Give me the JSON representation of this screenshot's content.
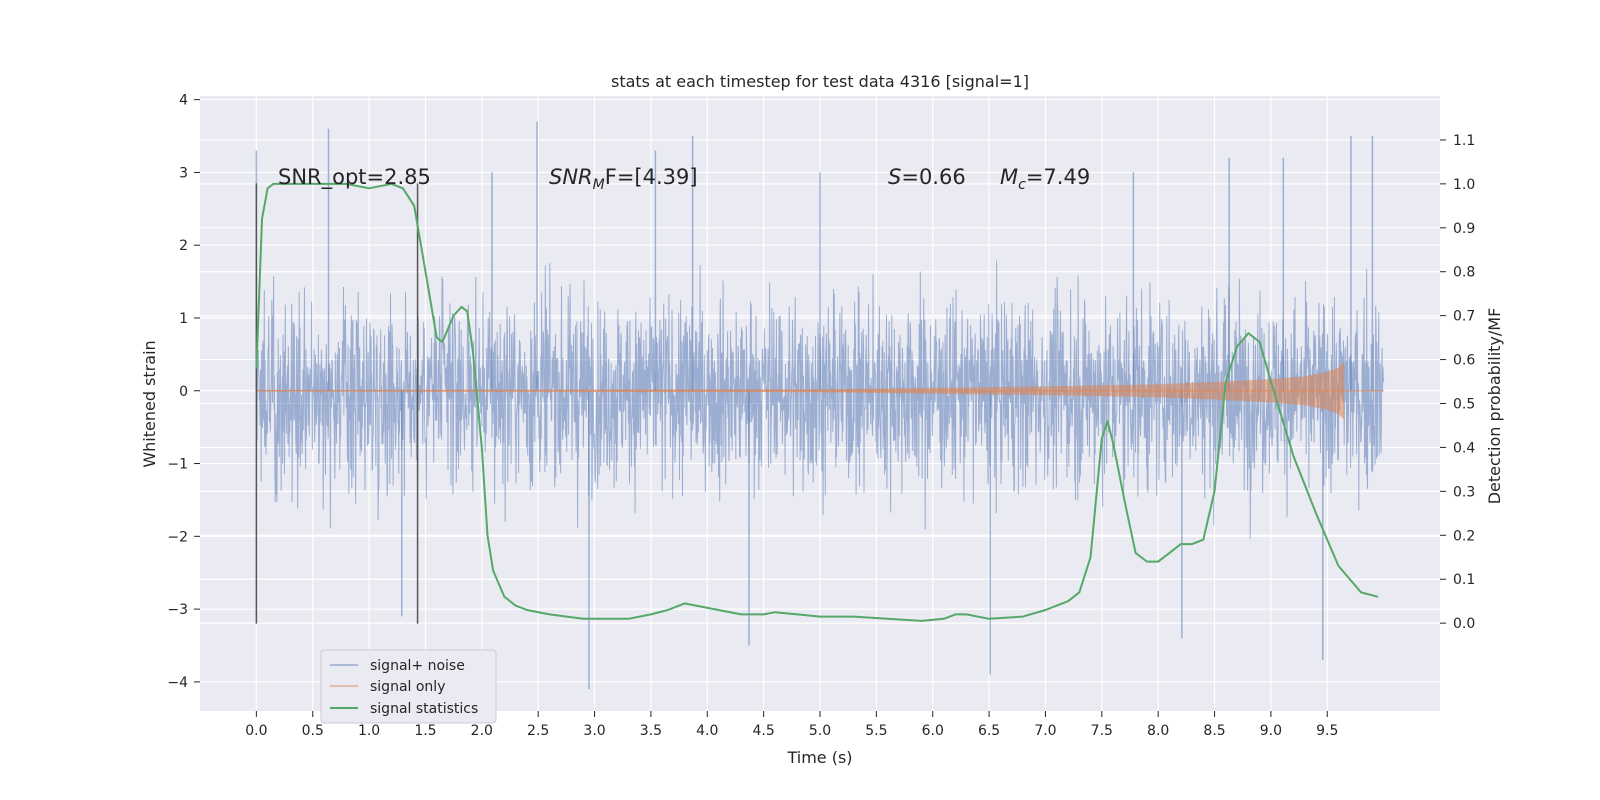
{
  "chart_data": {
    "type": "line",
    "title": "stats at each timestep for test data 4316 [signal=1]",
    "xlabel": "Time (s)",
    "ylabel": "Whitened strain",
    "y2label": "Detection probability/MF",
    "xlim": [
      -0.5,
      10.5
    ],
    "ylim": [
      -4.4,
      4.05
    ],
    "y2lim": [
      -0.2,
      1.2
    ],
    "x_ticks": [
      "0.0",
      "0.5",
      "1.0",
      "1.5",
      "2.0",
      "2.5",
      "3.0",
      "3.5",
      "4.0",
      "4.5",
      "5.0",
      "5.5",
      "6.0",
      "6.5",
      "7.0",
      "7.5",
      "8.0",
      "8.5",
      "9.0",
      "9.5"
    ],
    "y_ticks": [
      "4",
      "3",
      "2",
      "1",
      "0",
      "−1",
      "−2",
      "−3",
      "−4"
    ],
    "y2_ticks": [
      "1.1",
      "1.0",
      "0.9",
      "0.8",
      "0.7",
      "0.6",
      "0.5",
      "0.4",
      "0.3",
      "0.2",
      "0.1",
      "0.0"
    ],
    "grid": true,
    "legend_position": "lower-left",
    "annotations": {
      "snr_opt": "SNR_opt=2.85",
      "snr_mf_pre": "SNR",
      "snr_mf_sub": "M",
      "snr_mf_post": "F=[4.39]",
      "s_pre": "S",
      "s_post": "=0.66",
      "mc_pre": "M",
      "mc_sub": "c",
      "mc_post": "=7.49"
    },
    "vlines": [
      0.0,
      1.43
    ],
    "series": [
      {
        "name": "signal+ noise",
        "color": "#4c72b0",
        "description_range": [
          -2.5,
          2.5
        ],
        "peaks": {
          "x": [
            0.0,
            0.64,
            1.29,
            2.09,
            2.49,
            2.95,
            3.54,
            3.87,
            4.37,
            5.0,
            6.51,
            7.78,
            8.21,
            8.63,
            9.11,
            9.46,
            9.71,
            9.9
          ],
          "y": [
            3.3,
            3.6,
            -3.1,
            3.0,
            3.7,
            -4.1,
            3.3,
            3.5,
            -3.5,
            3.0,
            -3.9,
            3.0,
            -3.4,
            3.2,
            3.2,
            -3.7,
            3.5,
            3.5
          ]
        }
      },
      {
        "name": "signal only",
        "color": "#dd8452",
        "x": [
          0,
          5,
          6,
          7,
          8,
          8.5,
          9,
          9.3,
          9.5,
          9.6,
          9.65
        ],
        "amplitude": [
          0.01,
          0.02,
          0.04,
          0.06,
          0.09,
          0.12,
          0.16,
          0.2,
          0.26,
          0.32,
          0.4
        ]
      },
      {
        "name": "signal statistics",
        "color": "#55a868",
        "x": [
          0,
          0.05,
          0.1,
          0.15,
          0.2,
          0.3,
          0.5,
          0.8,
          1.0,
          1.2,
          1.3,
          1.4,
          1.5,
          1.6,
          1.65,
          1.75,
          1.82,
          1.87,
          1.92,
          2.0,
          2.05,
          2.1,
          2.15,
          2.2,
          2.3,
          2.4,
          2.6,
          2.9,
          3.0,
          3.3,
          3.5,
          3.65,
          3.75,
          3.8,
          3.9,
          4.1,
          4.3,
          4.5,
          4.6,
          4.8,
          5.0,
          5.3,
          5.6,
          5.9,
          6.1,
          6.2,
          6.3,
          6.5,
          6.8,
          7.0,
          7.2,
          7.3,
          7.4,
          7.5,
          7.55,
          7.6,
          7.7,
          7.8,
          7.9,
          8.0,
          8.1,
          8.2,
          8.3,
          8.4,
          8.5,
          8.6,
          8.7,
          8.8,
          8.85,
          8.9,
          9.0,
          9.2,
          9.4,
          9.6,
          9.8,
          9.95
        ],
        "y": [
          0.58,
          0.92,
          0.99,
          1.0,
          1.0,
          1.0,
          1.0,
          1.0,
          0.99,
          1.0,
          0.99,
          0.95,
          0.8,
          0.65,
          0.64,
          0.7,
          0.72,
          0.71,
          0.62,
          0.4,
          0.2,
          0.12,
          0.09,
          0.06,
          0.04,
          0.03,
          0.02,
          0.01,
          0.01,
          0.01,
          0.02,
          0.03,
          0.04,
          0.045,
          0.04,
          0.03,
          0.02,
          0.02,
          0.025,
          0.02,
          0.015,
          0.015,
          0.01,
          0.005,
          0.01,
          0.02,
          0.02,
          0.01,
          0.015,
          0.03,
          0.05,
          0.07,
          0.15,
          0.42,
          0.46,
          0.41,
          0.28,
          0.16,
          0.14,
          0.14,
          0.16,
          0.18,
          0.18,
          0.19,
          0.3,
          0.55,
          0.63,
          0.66,
          0.65,
          0.64,
          0.55,
          0.38,
          0.25,
          0.13,
          0.07,
          0.06
        ]
      }
    ]
  }
}
